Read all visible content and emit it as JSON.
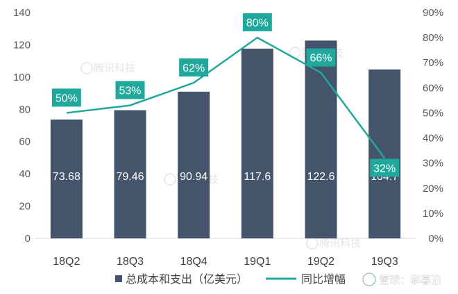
{
  "chart_data": {
    "type": "bar+line",
    "categories": [
      "18Q2",
      "18Q3",
      "18Q4",
      "19Q1",
      "19Q2",
      "19Q3"
    ],
    "series": [
      {
        "name": "总成本和支出（亿美元）",
        "type": "bar",
        "axis": "left",
        "values": [
          73.68,
          79.46,
          90.94,
          117.6,
          122.6,
          104.7
        ],
        "labels": [
          "73.68",
          "79.46",
          "90.94",
          "117.6",
          "122.6",
          "104.7"
        ],
        "color": "#44546A"
      },
      {
        "name": "同比增幅",
        "type": "line",
        "axis": "right",
        "values": [
          50,
          53,
          62,
          80,
          66,
          32
        ],
        "labels": [
          "50%",
          "53%",
          "62%",
          "80%",
          "66%",
          "32%"
        ],
        "color": "#1FA89B"
      }
    ],
    "left_axis": {
      "ylim": [
        0,
        140
      ],
      "ticks": [
        0,
        20,
        40,
        60,
        80,
        100,
        120,
        140
      ],
      "tick_labels": [
        "0",
        "20",
        "40",
        "60",
        "80",
        "100",
        "120",
        "140"
      ]
    },
    "right_axis": {
      "ylim": [
        0,
        90
      ],
      "ticks": [
        0,
        10,
        20,
        30,
        40,
        50,
        60,
        70,
        80,
        90
      ],
      "tick_labels": [
        "0%",
        "10%",
        "20%",
        "30%",
        "40%",
        "50%",
        "60%",
        "70%",
        "80%",
        "90%"
      ]
    },
    "title": "",
    "xlabel": "",
    "legend_position": "bottom",
    "grid": false
  },
  "colors": {
    "background": "#ffffff",
    "bar": "#44546A",
    "line": "#1FA89B",
    "label_box": "#1FA89B",
    "axis_text": "#595959"
  },
  "watermarks": [
    "腾讯科技",
    "腾讯科技",
    "腾讯科技",
    "腾讯科技"
  ],
  "signature": "雪球：李暮泊"
}
